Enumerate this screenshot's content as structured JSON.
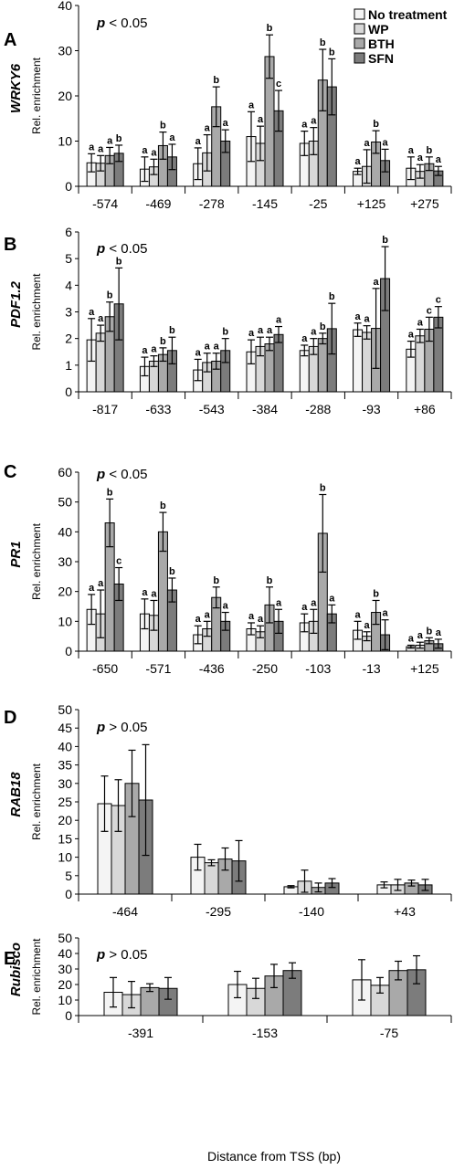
{
  "legend": [
    {
      "label": "No treatment",
      "color": "#f4f4f4"
    },
    {
      "label": "WP",
      "color": "#d8d8d8"
    },
    {
      "label": "BTH",
      "color": "#a9a9a9"
    },
    {
      "label": "SFN",
      "color": "#7c7c7c"
    }
  ],
  "shared_xlabel": "Distance from TSS (bp)",
  "chart_data": [
    {
      "panel": "A",
      "gene": "WRKY6",
      "type": "bar",
      "ylabel": "Rel. enrichment",
      "pvalue_note": "< 0.05",
      "ylim": [
        0,
        40
      ],
      "yticks": [
        0,
        10,
        20,
        30,
        40
      ],
      "categories": [
        "-574",
        "-469",
        "-278",
        "-145",
        "-25",
        "+125",
        "+275"
      ],
      "series": [
        {
          "name": "No treatment",
          "values": [
            5.2,
            3.8,
            5.0,
            11.0,
            9.5,
            3.3,
            4.0
          ],
          "errors": [
            2.0,
            2.7,
            3.5,
            5.5,
            2.7,
            0.7,
            2.5
          ]
        },
        {
          "name": "WP",
          "values": [
            5.1,
            4.3,
            7.4,
            9.5,
            10.0,
            4.4,
            3.3
          ],
          "errors": [
            1.7,
            1.7,
            4.0,
            3.8,
            3.0,
            3.7,
            1.5
          ]
        },
        {
          "name": "BTH",
          "values": [
            6.8,
            9.0,
            17.6,
            28.7,
            23.5,
            9.8,
            5.0
          ],
          "errors": [
            1.8,
            3.0,
            4.4,
            4.8,
            6.8,
            2.5,
            1.5
          ]
        },
        {
          "name": "SFN",
          "values": [
            7.3,
            6.5,
            10.0,
            16.7,
            22.0,
            5.7,
            3.4
          ],
          "errors": [
            1.8,
            2.8,
            2.5,
            4.5,
            6.2,
            2.5,
            1.0
          ]
        }
      ],
      "letters": [
        [
          "a",
          "a",
          "a",
          "b"
        ],
        [
          "a",
          "a",
          "b",
          "a"
        ],
        [
          "a",
          "a",
          "b",
          "a"
        ],
        [
          "a",
          "a",
          "b",
          "c"
        ],
        [
          "a",
          "a",
          "b",
          "b"
        ],
        [
          "a",
          "a",
          "b",
          "a"
        ],
        [
          "a",
          "a",
          "b",
          "a"
        ]
      ]
    },
    {
      "panel": "B",
      "gene": "PDF1.2",
      "type": "bar",
      "ylabel": "Rel. enrichment",
      "pvalue_note": "< 0.05",
      "ylim": [
        0,
        6
      ],
      "yticks": [
        0,
        1,
        2,
        3,
        4,
        5,
        6
      ],
      "categories": [
        "-817",
        "-633",
        "-543",
        "-384",
        "-288",
        "-93",
        "+86"
      ],
      "series": [
        {
          "name": "No treatment",
          "values": [
            1.95,
            0.95,
            0.82,
            1.5,
            1.55,
            2.33,
            1.6
          ],
          "errors": [
            0.8,
            0.35,
            0.4,
            0.45,
            0.2,
            0.25,
            0.3
          ]
        },
        {
          "name": "WP",
          "values": [
            2.2,
            1.15,
            1.1,
            1.7,
            1.7,
            2.23,
            2.1
          ],
          "errors": [
            0.3,
            0.2,
            0.35,
            0.35,
            0.3,
            0.25,
            0.25
          ]
        },
        {
          "name": "BTH",
          "values": [
            2.82,
            1.4,
            1.15,
            1.8,
            2.0,
            2.38,
            2.35
          ],
          "errors": [
            0.55,
            0.25,
            0.3,
            0.25,
            0.2,
            1.5,
            0.45
          ]
        },
        {
          "name": "SFN",
          "values": [
            3.3,
            1.55,
            1.55,
            2.15,
            2.37,
            4.25,
            2.8
          ],
          "errors": [
            1.35,
            0.5,
            0.45,
            0.3,
            0.95,
            1.2,
            0.4
          ]
        }
      ],
      "letters": [
        [
          "a",
          "a",
          "b",
          "b"
        ],
        [
          "a",
          "a",
          "b",
          "b"
        ],
        [
          "a",
          "a",
          "a",
          "b"
        ],
        [
          "a",
          "a",
          "a",
          "a"
        ],
        [
          "a",
          "a",
          "b",
          "b"
        ],
        [
          "a",
          "a",
          "a",
          "b"
        ],
        [
          "a",
          "a",
          "c",
          "c"
        ]
      ]
    },
    {
      "panel": "C",
      "gene": "PR1",
      "type": "bar",
      "ylabel": "Rel. enrichment",
      "pvalue_note": "< 0.05",
      "ylim": [
        0,
        60
      ],
      "yticks": [
        0,
        10,
        20,
        30,
        40,
        50,
        60
      ],
      "categories": [
        "-650",
        "-571",
        "-436",
        "-250",
        "-103",
        "-13",
        "+125"
      ],
      "series": [
        {
          "name": "No treatment",
          "values": [
            14.0,
            12.5,
            5.5,
            7.5,
            9.5,
            7.0,
            1.5
          ],
          "errors": [
            5.0,
            5.0,
            3.0,
            2.0,
            3.0,
            3.0,
            0.5
          ]
        },
        {
          "name": "WP",
          "values": [
            12.5,
            12.0,
            7.5,
            6.5,
            10.0,
            5.0,
            2.0
          ],
          "errors": [
            8.0,
            5.0,
            2.5,
            2.0,
            4.0,
            1.5,
            1.0
          ]
        },
        {
          "name": "BTH",
          "values": [
            43.0,
            40.0,
            18.0,
            15.5,
            39.5,
            13.0,
            3.5
          ],
          "errors": [
            8.0,
            6.5,
            3.5,
            6.0,
            13.0,
            4.0,
            1.0
          ]
        },
        {
          "name": "SFN",
          "values": [
            22.5,
            20.5,
            10.0,
            10.0,
            12.5,
            5.5,
            2.5
          ],
          "errors": [
            5.5,
            4.0,
            3.0,
            4.0,
            3.0,
            5.0,
            1.5
          ]
        }
      ],
      "letters": [
        [
          "a",
          "a",
          "b",
          "c"
        ],
        [
          "a",
          "a",
          "b",
          "b"
        ],
        [
          "a",
          "a",
          "b",
          "a"
        ],
        [
          "a",
          "a",
          "b",
          "a"
        ],
        [
          "a",
          "a",
          "b",
          "a"
        ],
        [
          "a",
          "a",
          "b",
          "a"
        ],
        [
          "a",
          "a",
          "b",
          "a"
        ]
      ]
    },
    {
      "panel": "D",
      "gene": "RAB18",
      "type": "bar",
      "ylabel": "Rel. enrichment",
      "pvalue_note": "> 0.05",
      "ylim": [
        0,
        50
      ],
      "yticks": [
        0,
        5,
        10,
        15,
        20,
        25,
        30,
        35,
        40,
        45,
        50
      ],
      "categories": [
        "-464",
        "-295",
        "-140",
        "+43"
      ],
      "series": [
        {
          "name": "No treatment",
          "values": [
            24.5,
            10.0,
            2.0,
            2.5
          ],
          "errors": [
            7.5,
            3.5,
            0.3,
            0.8
          ]
        },
        {
          "name": "WP",
          "values": [
            24.0,
            8.5,
            3.5,
            2.5
          ],
          "errors": [
            7.0,
            0.8,
            3.0,
            1.5
          ]
        },
        {
          "name": "BTH",
          "values": [
            30.0,
            9.5,
            1.8,
            3.0
          ],
          "errors": [
            9.0,
            3.0,
            1.2,
            0.8
          ]
        },
        {
          "name": "SFN",
          "values": [
            25.5,
            9.0,
            3.0,
            2.5
          ],
          "errors": [
            15.0,
            5.5,
            1.2,
            1.5
          ]
        }
      ]
    },
    {
      "panel": "E",
      "gene": "Rubisco",
      "type": "bar",
      "ylabel": "Rel. enrichment",
      "pvalue_note": "> 0.05",
      "ylim": [
        0,
        50
      ],
      "yticks": [
        0,
        10,
        20,
        30,
        40,
        50
      ],
      "categories": [
        "-391",
        "-153",
        "-75"
      ],
      "series": [
        {
          "name": "No treatment",
          "values": [
            15.0,
            20.0,
            23.0
          ],
          "errors": [
            9.5,
            8.5,
            13.0
          ]
        },
        {
          "name": "WP",
          "values": [
            13.5,
            17.5,
            19.5
          ],
          "errors": [
            8.5,
            6.5,
            5.0
          ]
        },
        {
          "name": "BTH",
          "values": [
            18.0,
            25.5,
            29.0
          ],
          "errors": [
            2.5,
            7.5,
            6.0
          ]
        },
        {
          "name": "SFN",
          "values": [
            17.5,
            29.0,
            29.5
          ],
          "errors": [
            7.0,
            5.0,
            9.0
          ]
        }
      ]
    }
  ]
}
